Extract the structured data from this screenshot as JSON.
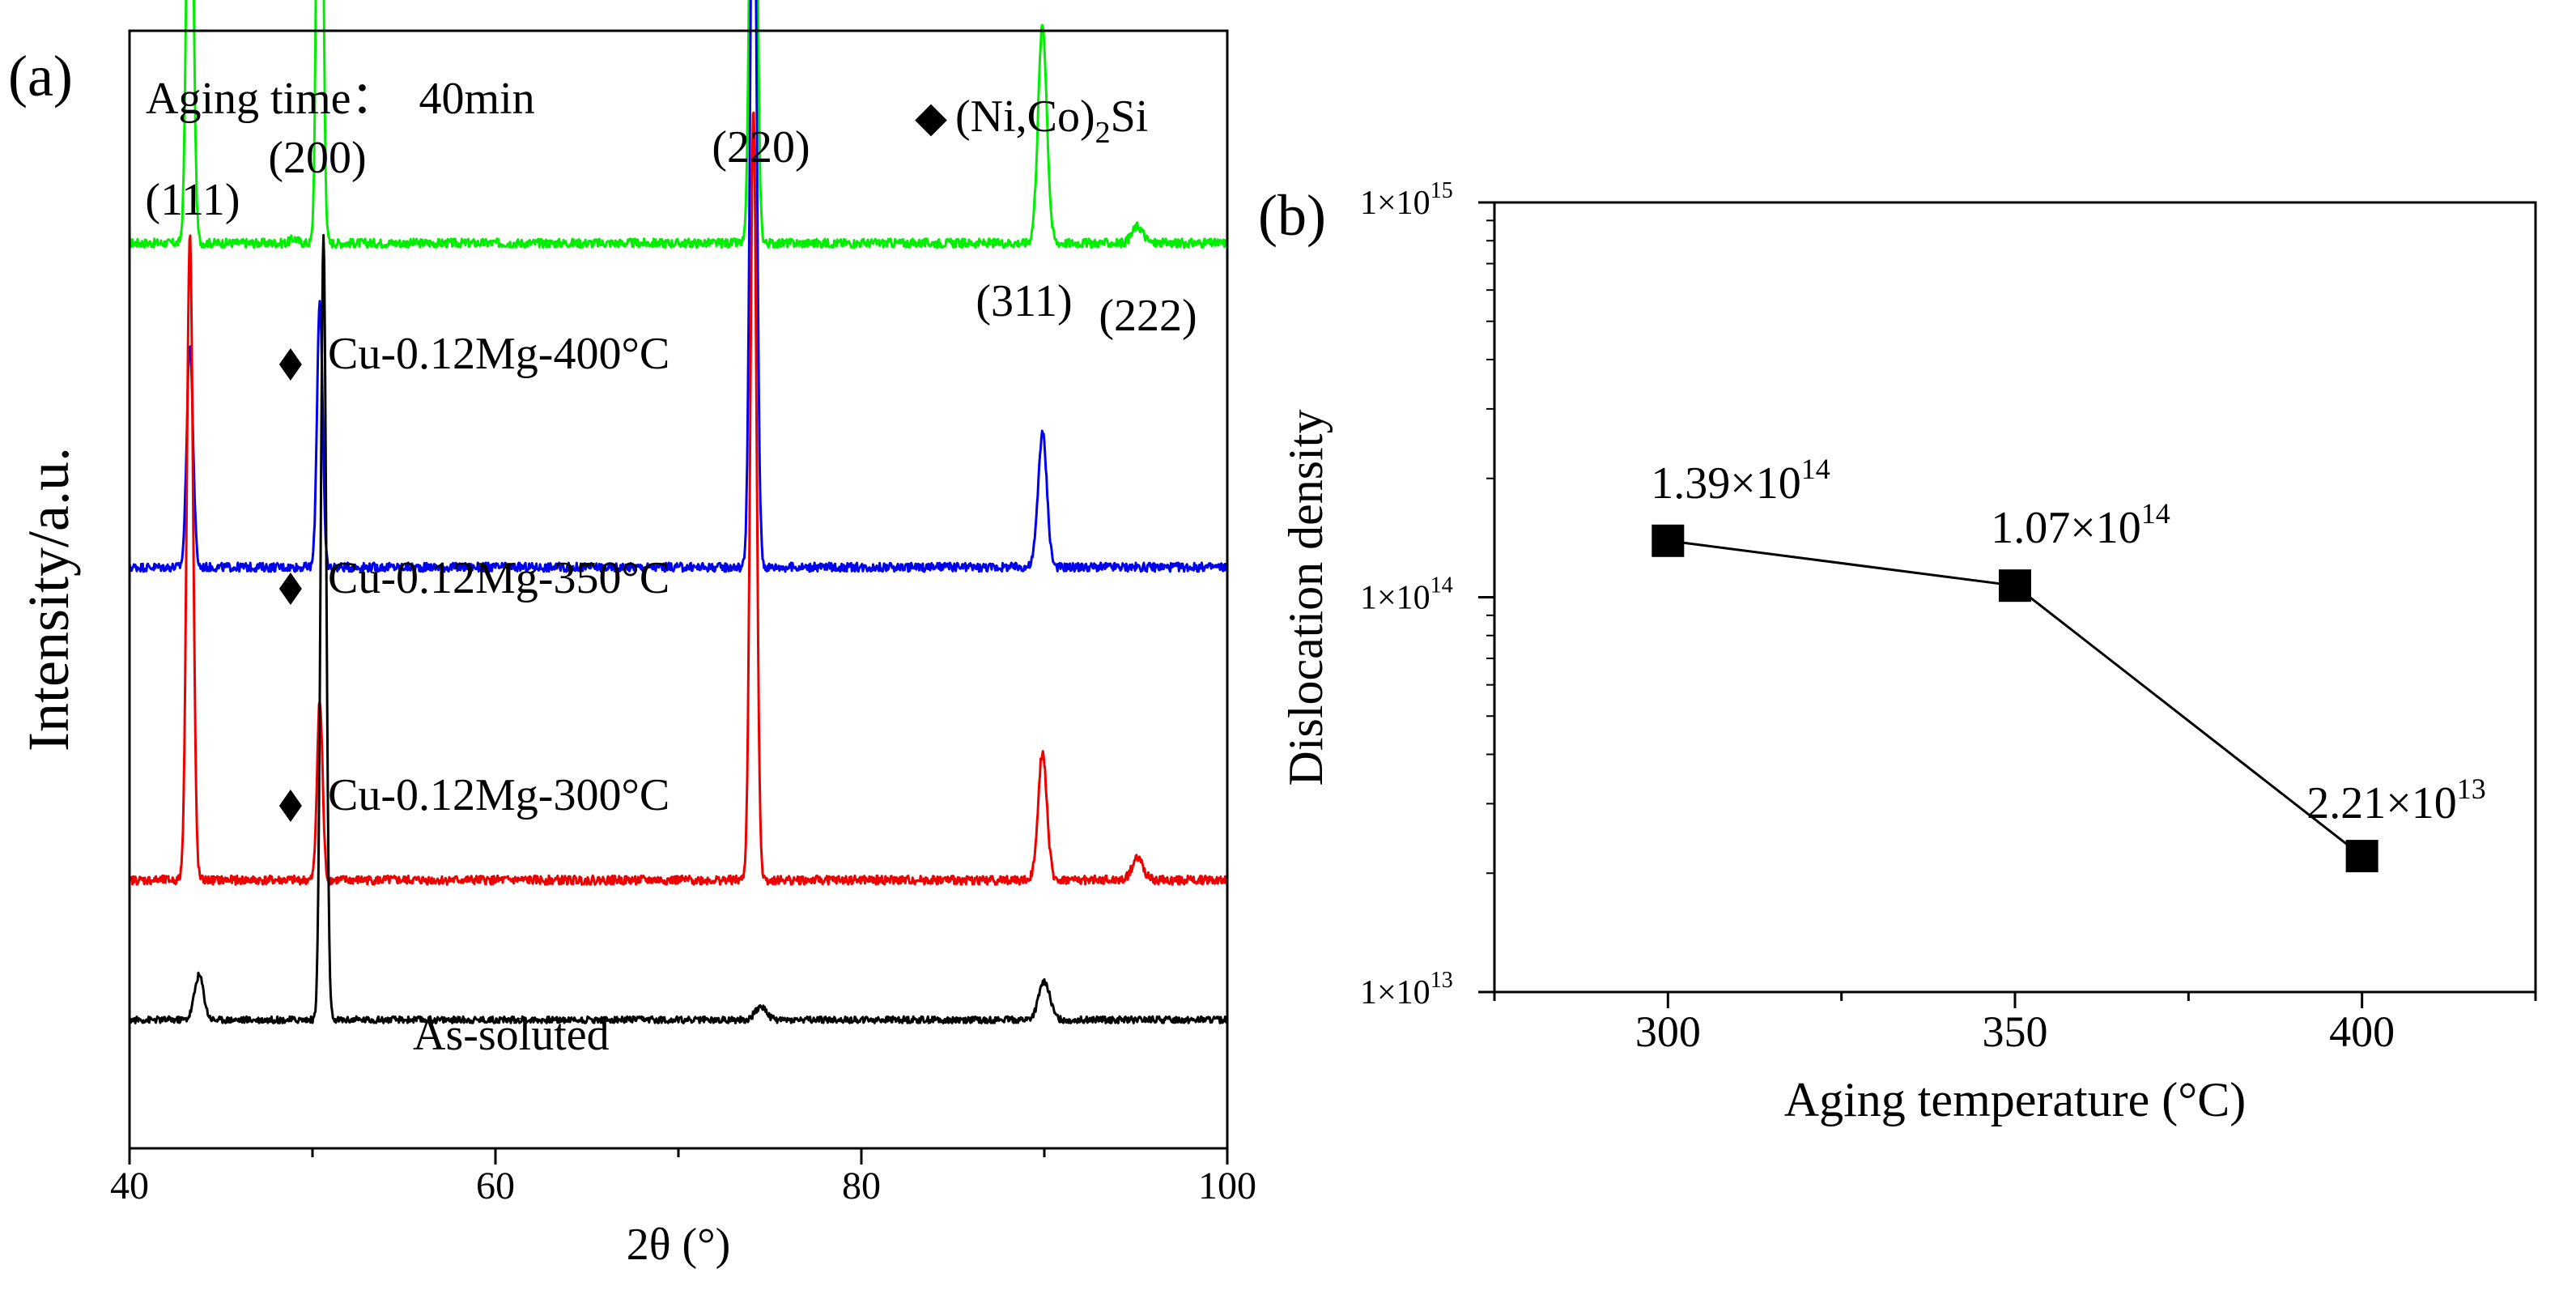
{
  "chart_data": [
    {
      "type": "line",
      "panel_label": "(a)",
      "title": "",
      "xlabel": "2θ (°)",
      "ylabel": "Intensity/a.u.",
      "xlim": [
        40,
        100
      ],
      "xticks": [
        40,
        60,
        80,
        100
      ],
      "yticks": [],
      "grid": false,
      "annotation": "Aging time：  40min",
      "legend": {
        "marker": "◆",
        "label_main": "(Ni,Co)",
        "label_sub": "2",
        "label_tail": "Si",
        "position": "top-right"
      },
      "peak_labels": [
        {
          "hkl": "(111)",
          "two_theta": 43.3
        },
        {
          "hkl": "(200)",
          "two_theta": 50.4
        },
        {
          "hkl": "(220)",
          "two_theta": 74.1
        },
        {
          "hkl": "(311)",
          "two_theta": 89.9
        },
        {
          "hkl": "(222)",
          "two_theta": 95.1
        }
      ],
      "series": [
        {
          "name": "Cu-0.12Mg-400°C",
          "color": "#00ee00",
          "baseline": 0.81,
          "noise": 0.004,
          "peaks": [
            {
              "x": 43.3,
              "h": 0.48,
              "w": 0.17
            },
            {
              "x": 49.0,
              "h": 0.004,
              "w": 0.2
            },
            {
              "x": 50.4,
              "h": 0.64,
              "w": 0.15
            },
            {
              "x": 74.1,
              "h": 0.66,
              "w": 0.17
            },
            {
              "x": 89.9,
              "h": 0.195,
              "w": 0.24
            },
            {
              "x": 95.1,
              "h": 0.015,
              "w": 0.3
            }
          ],
          "diamond_marker_at": 48.8
        },
        {
          "name": "Cu-0.12Mg-350°C",
          "color": "#0000ee",
          "baseline": 0.52,
          "noise": 0.004,
          "peaks": [
            {
              "x": 43.3,
              "h": 0.2,
              "w": 0.17
            },
            {
              "x": 50.4,
              "h": 0.24,
              "w": 0.15
            },
            {
              "x": 74.1,
              "h": 0.74,
              "w": 0.17
            },
            {
              "x": 89.9,
              "h": 0.12,
              "w": 0.24
            }
          ],
          "diamond_marker_at": 48.8
        },
        {
          "name": "Cu-0.12Mg-300°C",
          "color": "#ee0000",
          "baseline": 0.24,
          "noise": 0.004,
          "peaks": [
            {
              "x": 43.3,
              "h": 0.58,
              "w": 0.17
            },
            {
              "x": 50.4,
              "h": 0.16,
              "w": 0.15
            },
            {
              "x": 74.1,
              "h": 0.69,
              "w": 0.17
            },
            {
              "x": 89.9,
              "h": 0.115,
              "w": 0.24
            },
            {
              "x": 95.1,
              "h": 0.02,
              "w": 0.3
            }
          ],
          "diamond_marker_at": 48.8
        },
        {
          "name": "As-soluted",
          "color": "#000000",
          "baseline": 0.115,
          "noise": 0.003,
          "peaks": [
            {
              "x": 43.8,
              "h": 0.04,
              "w": 0.25
            },
            {
              "x": 50.6,
              "h": 0.7,
              "w": 0.15
            },
            {
              "x": 74.5,
              "h": 0.012,
              "w": 0.3
            },
            {
              "x": 90.0,
              "h": 0.035,
              "w": 0.3
            }
          ]
        }
      ]
    },
    {
      "type": "line",
      "panel_label": "(b)",
      "title": "",
      "xlabel": "Aging temperature (°C)",
      "ylabel": "Dislocation density",
      "xscale": "linear",
      "yscale": "log",
      "xlim": [
        275,
        425
      ],
      "ylim": [
        10000000000000.0,
        1000000000000000.0
      ],
      "xticks": [
        300,
        350,
        400
      ],
      "yticks": [
        {
          "value": 10000000000000.0,
          "mantissa": "1×10",
          "exp": "13"
        },
        {
          "value": 100000000000000.0,
          "mantissa": "1×10",
          "exp": "14"
        },
        {
          "value": 1000000000000000.0,
          "mantissa": "1×10",
          "exp": "15"
        }
      ],
      "grid": false,
      "series": [
        {
          "name": "Dislocation density",
          "marker": "square",
          "color": "#000000",
          "x": [
            300,
            350,
            400
          ],
          "y": [
            139000000000000.0,
            107000000000000.0,
            22100000000000.0
          ],
          "labels": [
            {
              "mantissa": "1.39×10",
              "exp": "14"
            },
            {
              "mantissa": "1.07×10",
              "exp": "14"
            },
            {
              "mantissa": "2.21×10",
              "exp": "13"
            }
          ]
        }
      ]
    }
  ]
}
